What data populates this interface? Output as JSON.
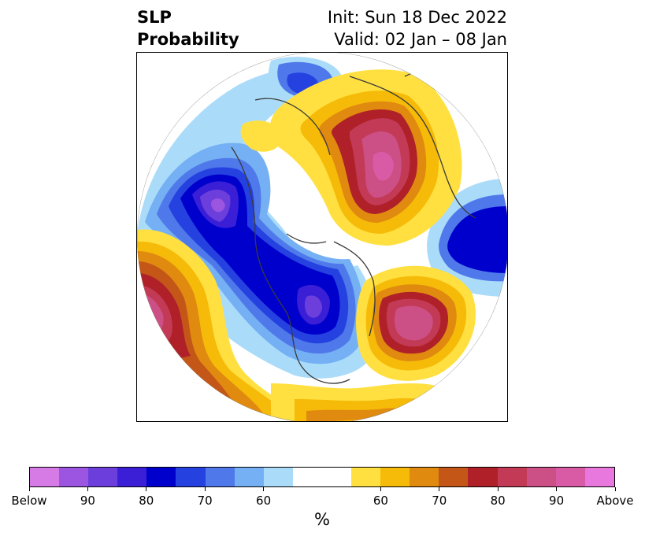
{
  "title": {
    "line1_left": "SLP",
    "line2_left": "Probability",
    "line1_right": "Init: Sun 18 Dec 2022",
    "line2_right": "Valid: 02 Jan – 08 Jan"
  },
  "colorbar": {
    "unit": "%",
    "colors": [
      "#d67ae6",
      "#9b55e0",
      "#6c3fdc",
      "#3b1fd6",
      "#0000cd",
      "#2542e0",
      "#4f79ea",
      "#74b0f3",
      "#aadcfa",
      "#ffffff",
      "#ffffff",
      "#ffe040",
      "#f5bb08",
      "#e08a10",
      "#c45718",
      "#b02028",
      "#c23a55",
      "#cc4f85",
      "#d95aa5",
      "#e878dd"
    ],
    "labels": [
      {
        "text": "Below",
        "index": 0
      },
      {
        "text": "90",
        "index": 2
      },
      {
        "text": "80",
        "index": 4
      },
      {
        "text": "70",
        "index": 6
      },
      {
        "text": "60",
        "index": 8
      },
      {
        "text": "60",
        "index": 12
      },
      {
        "text": "70",
        "index": 14
      },
      {
        "text": "80",
        "index": 16
      },
      {
        "text": "90",
        "index": 18
      },
      {
        "text": "Above",
        "index": 20
      }
    ]
  },
  "map": {
    "projection": "north-polar-stereographic",
    "below_color_key": "blue",
    "above_color_key": "red",
    "anomalies": [
      {
        "name": "Pacific low",
        "sign": "below",
        "peak_level": 9
      },
      {
        "name": "North America low",
        "sign": "below",
        "peak_level": 8
      },
      {
        "name": "Siberia low",
        "sign": "below",
        "peak_level": 5
      },
      {
        "name": "Arctic high",
        "sign": "above",
        "peak_level": 9
      },
      {
        "name": "North Atlantic high",
        "sign": "above",
        "peak_level": 8
      },
      {
        "name": "NE Pacific high",
        "sign": "above",
        "peak_level": 8
      }
    ]
  }
}
